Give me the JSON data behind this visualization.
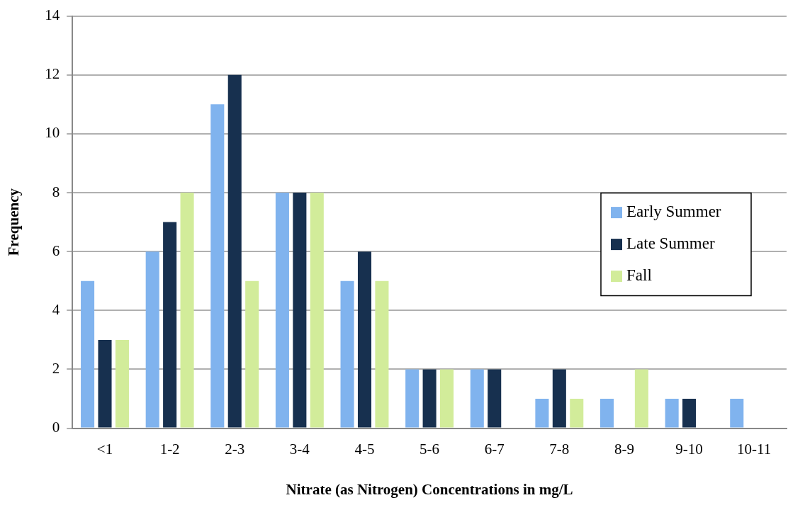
{
  "chart_data": {
    "type": "bar",
    "xlabel": "Nitrate (as Nitrogen) Concentrations in mg/L",
    "ylabel": "Frequency",
    "categories": [
      "<1",
      "1-2",
      "2-3",
      "3-4",
      "4-5",
      "5-6",
      "6-7",
      "7-8",
      "8-9",
      "9-10",
      "10-11"
    ],
    "series": [
      {
        "name": "Early Summer",
        "color": "#80b3ee",
        "values": [
          5,
          6,
          11,
          8,
          5,
          2,
          2,
          1,
          1,
          1,
          1
        ]
      },
      {
        "name": "Late Summer",
        "color": "#17304f",
        "values": [
          3,
          7,
          12,
          8,
          6,
          2,
          2,
          2,
          0,
          1,
          0
        ]
      },
      {
        "name": "Fall",
        "color": "#d2ec9a",
        "values": [
          3,
          8,
          5,
          8,
          5,
          2,
          0,
          1,
          2,
          0,
          0
        ]
      }
    ],
    "ylim": [
      0,
      14
    ],
    "yticks": [
      0,
      2,
      4,
      6,
      8,
      10,
      12,
      14
    ],
    "grid": "y",
    "legend": "right"
  }
}
